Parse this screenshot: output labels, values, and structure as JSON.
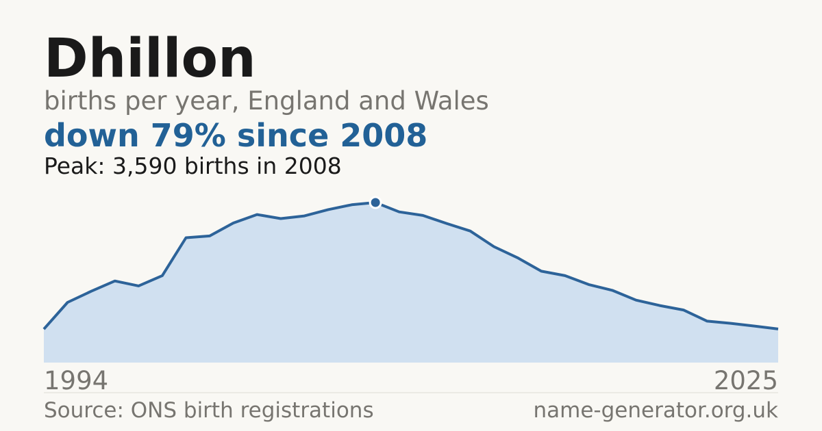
{
  "chart_data": {
    "type": "area",
    "title": "Dhillon",
    "subtitle": "births per year, England and Wales",
    "headline": "down 79% since 2008",
    "annotation": "Peak: 3,590 births in 2008",
    "x": [
      1994,
      1995,
      1996,
      1997,
      1998,
      1999,
      2000,
      2001,
      2002,
      2003,
      2004,
      2005,
      2006,
      2007,
      2008,
      2009,
      2010,
      2011,
      2012,
      2013,
      2014,
      2015,
      2016,
      2017,
      2018,
      2019,
      2020,
      2021,
      2022,
      2023,
      2024,
      2025
    ],
    "values": [
      750,
      1350,
      1600,
      1830,
      1720,
      1950,
      2800,
      2840,
      3130,
      3320,
      3230,
      3290,
      3430,
      3540,
      3590,
      3380,
      3300,
      3120,
      2950,
      2600,
      2350,
      2050,
      1950,
      1750,
      1620,
      1400,
      1280,
      1180,
      930,
      880,
      820,
      754
    ],
    "peak_index": 14,
    "color": "#2d6399",
    "fill": "#d0e0f0",
    "xlim": [
      1994,
      2025
    ],
    "xticks": [
      1994,
      2025
    ],
    "ylim": [
      0,
      3590
    ],
    "source": "Source: ONS birth registrations",
    "site": "name-generator.org.uk"
  }
}
